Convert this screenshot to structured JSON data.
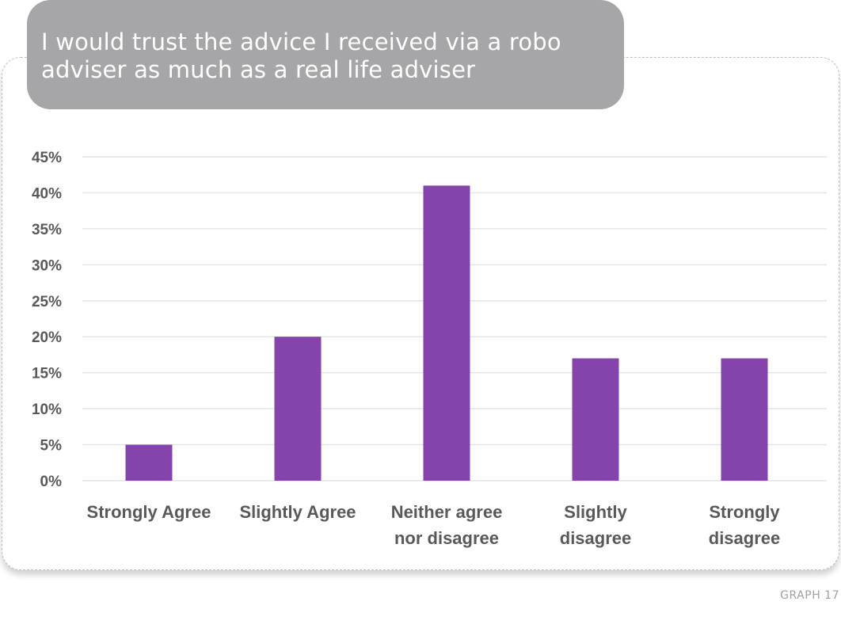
{
  "chart_data": {
    "type": "bar",
    "title": "I would trust the advice I received via a robo adviser as much as a real life adviser",
    "categories": [
      [
        "Strongly Agree"
      ],
      [
        "Slightly Agree"
      ],
      [
        "Neither agree",
        "nor disagree"
      ],
      [
        "Slightly",
        "disagree"
      ],
      [
        "Strongly",
        "disagree"
      ]
    ],
    "values": [
      5,
      20,
      41,
      17,
      17
    ],
    "value_unit": "%",
    "ylim": [
      0,
      45
    ],
    "yticks": [
      0,
      5,
      10,
      15,
      20,
      25,
      30,
      35,
      40,
      45
    ],
    "ytick_labels": [
      "0%",
      "5%",
      "10%",
      "15%",
      "20%",
      "25%",
      "30%",
      "35%",
      "40%",
      "45%"
    ],
    "xlabel": "",
    "ylabel": "",
    "grid": true,
    "legend": "none",
    "bar_color": "#8544ab",
    "grid_color": "#e4e4e4"
  },
  "footer": {
    "graph_number": "GRAPH 17"
  }
}
